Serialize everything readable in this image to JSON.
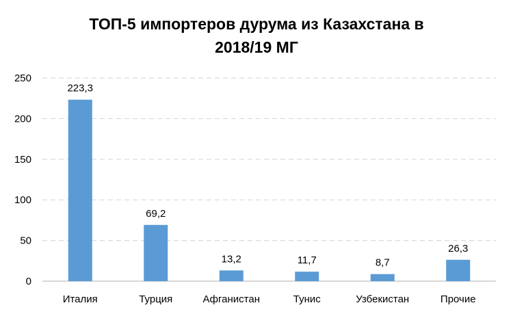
{
  "chart_data": {
    "type": "bar",
    "title_lines": [
      "ТОП-5 импортеров дурума из Казахстана  в",
      "2018/19 МГ"
    ],
    "categories": [
      "Италия",
      "Турция",
      "Афганистан",
      "Тунис",
      "Узбекистан",
      "Прочие"
    ],
    "values": [
      223.3,
      69.2,
      13.2,
      11.7,
      8.7,
      26.3
    ],
    "data_labels": [
      "223,3",
      "69,2",
      "13,2",
      "11,7",
      "8,7",
      "26,3"
    ],
    "xlabel": "",
    "ylabel": "",
    "ylim": [
      0,
      250
    ],
    "yticks": [
      0,
      50,
      100,
      150,
      200,
      250
    ],
    "grid": true,
    "bar_color": "#5B9BD5",
    "grid_color": "#D9D9D9",
    "axis_color": "#BFBFBF"
  }
}
